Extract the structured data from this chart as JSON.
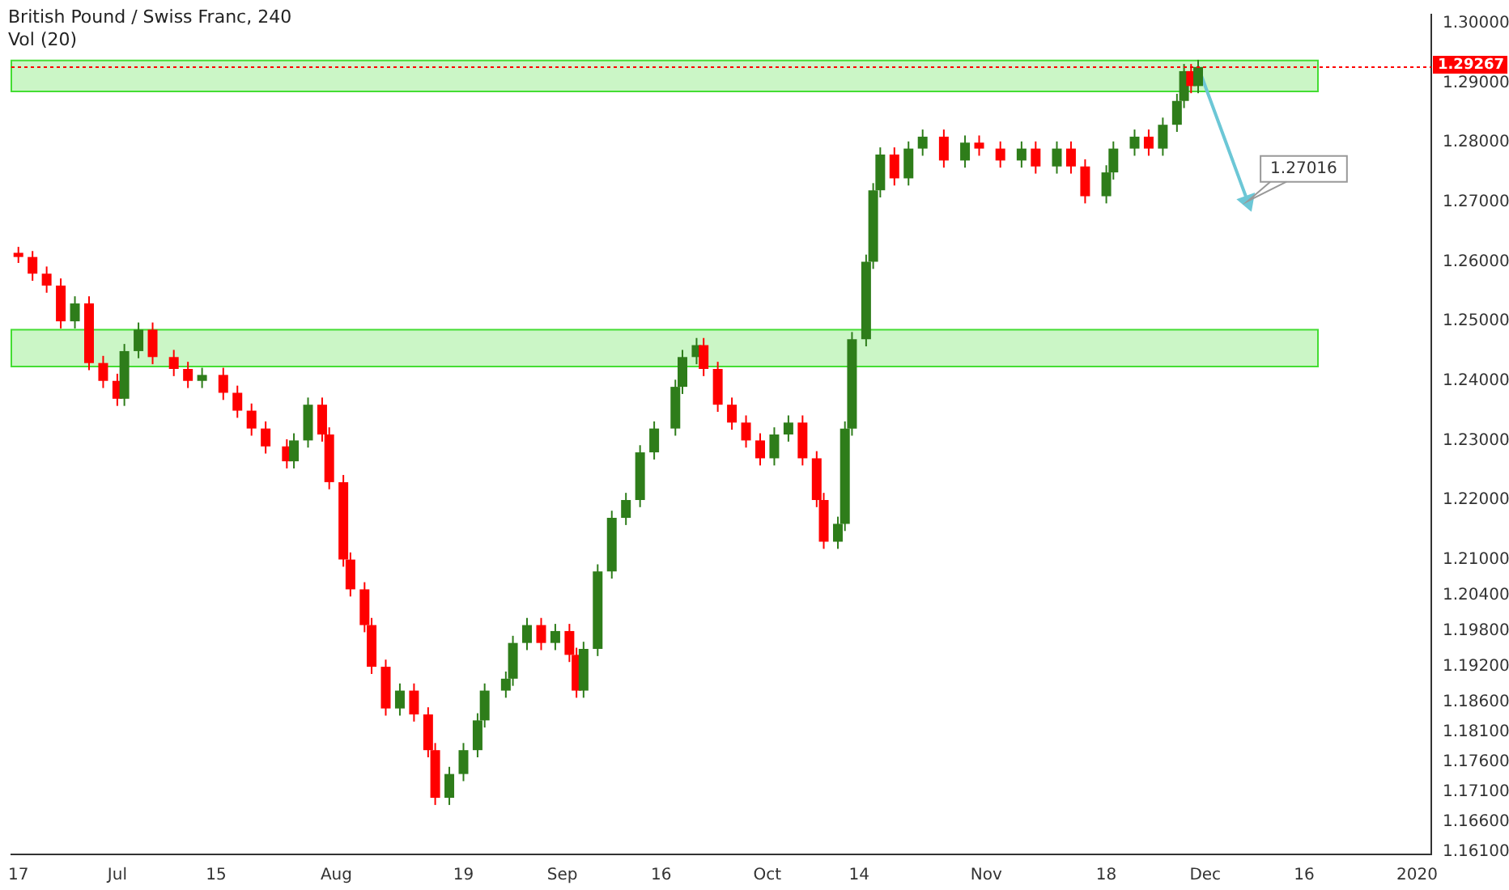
{
  "chart_data": {
    "type": "candlestick",
    "title": "British Pound / Swiss Franc, 240",
    "subtitle": "Vol (20)",
    "x": [
      "2019-06-17",
      "2019-06-19",
      "2019-06-21",
      "2019-06-23",
      "2019-06-25",
      "2019-06-27",
      "2019-06-29",
      "2019-07-01",
      "2019-07-02",
      "2019-07-04",
      "2019-07-06",
      "2019-07-09",
      "2019-07-11",
      "2019-07-13",
      "2019-07-16",
      "2019-07-18",
      "2019-07-20",
      "2019-07-22",
      "2019-07-25",
      "2019-07-26",
      "2019-07-28",
      "2019-07-30",
      "2019-07-31",
      "2019-08-02",
      "2019-08-03",
      "2019-08-05",
      "2019-08-06",
      "2019-08-08",
      "2019-08-10",
      "2019-08-12",
      "2019-08-14",
      "2019-08-15",
      "2019-08-17",
      "2019-08-19",
      "2019-08-21",
      "2019-08-22",
      "2019-08-25",
      "2019-08-26",
      "2019-08-28",
      "2019-08-30",
      "2019-09-01",
      "2019-09-03",
      "2019-09-04",
      "2019-09-05",
      "2019-09-07",
      "2019-09-09",
      "2019-09-11",
      "2019-09-13",
      "2019-09-15",
      "2019-09-18",
      "2019-09-19",
      "2019-09-21",
      "2019-09-22",
      "2019-09-24",
      "2019-09-26",
      "2019-09-28",
      "2019-09-30",
      "2019-10-02",
      "2019-10-04",
      "2019-10-06",
      "2019-10-08",
      "2019-10-09",
      "2019-10-11",
      "2019-10-12",
      "2019-10-13",
      "2019-10-15",
      "2019-10-16",
      "2019-10-17",
      "2019-10-19",
      "2019-10-21",
      "2019-10-23",
      "2019-10-26",
      "2019-10-29",
      "2019-10-31",
      "2019-11-03",
      "2019-11-06",
      "2019-11-08",
      "2019-11-11",
      "2019-11-13",
      "2019-11-15",
      "2019-11-18",
      "2019-11-19",
      "2019-11-22",
      "2019-11-24",
      "2019-11-26",
      "2019-11-28",
      "2019-11-29",
      "2019-11-30",
      "2019-12-01"
    ],
    "ohlc": [
      [
        1.2615,
        1.2625,
        1.2598,
        1.2608
      ],
      [
        1.2608,
        1.2618,
        1.2568,
        1.258
      ],
      [
        1.258,
        1.2592,
        1.2548,
        1.256
      ],
      [
        1.256,
        1.2572,
        1.2488,
        1.25
      ],
      [
        1.25,
        1.2542,
        1.2488,
        1.253
      ],
      [
        1.253,
        1.2542,
        1.2418,
        1.243
      ],
      [
        1.243,
        1.2442,
        1.2388,
        1.24
      ],
      [
        1.24,
        1.2412,
        1.2358,
        1.237
      ],
      [
        1.237,
        1.2462,
        1.2358,
        1.245
      ],
      [
        1.245,
        1.2498,
        1.2438,
        1.2486
      ],
      [
        1.2486,
        1.2498,
        1.2428,
        1.244
      ],
      [
        1.244,
        1.2452,
        1.2408,
        1.242
      ],
      [
        1.242,
        1.2432,
        1.2388,
        1.24
      ],
      [
        1.24,
        1.2422,
        1.2388,
        1.241
      ],
      [
        1.241,
        1.2422,
        1.2368,
        1.238
      ],
      [
        1.238,
        1.2392,
        1.2338,
        1.235
      ],
      [
        1.235,
        1.2362,
        1.2308,
        1.232
      ],
      [
        1.232,
        1.2332,
        1.2278,
        1.229
      ],
      [
        1.229,
        1.2302,
        1.2253,
        1.2265
      ],
      [
        1.2265,
        1.2312,
        1.2253,
        1.23
      ],
      [
        1.23,
        1.2372,
        1.2288,
        1.236
      ],
      [
        1.236,
        1.2372,
        1.2298,
        1.231
      ],
      [
        1.231,
        1.2322,
        1.2218,
        1.223
      ],
      [
        1.223,
        1.2242,
        1.2088,
        1.21
      ],
      [
        1.21,
        1.2112,
        1.2038,
        1.205
      ],
      [
        1.205,
        1.2062,
        1.1978,
        1.199
      ],
      [
        1.199,
        1.2002,
        1.1908,
        1.192
      ],
      [
        1.192,
        1.1932,
        1.1838,
        1.185
      ],
      [
        1.185,
        1.1892,
        1.1838,
        1.188
      ],
      [
        1.188,
        1.1892,
        1.1828,
        1.184
      ],
      [
        1.184,
        1.1852,
        1.1768,
        1.178
      ],
      [
        1.178,
        1.1792,
        1.1688,
        1.17
      ],
      [
        1.17,
        1.1752,
        1.1688,
        1.174
      ],
      [
        1.174,
        1.1792,
        1.1728,
        1.178
      ],
      [
        1.178,
        1.1842,
        1.1768,
        1.183
      ],
      [
        1.183,
        1.1892,
        1.1818,
        1.188
      ],
      [
        1.188,
        1.1912,
        1.1868,
        1.19
      ],
      [
        1.19,
        1.1972,
        1.1888,
        1.196
      ],
      [
        1.196,
        1.2002,
        1.1948,
        1.199
      ],
      [
        1.199,
        1.2002,
        1.1948,
        1.196
      ],
      [
        1.196,
        1.1992,
        1.1948,
        1.198
      ],
      [
        1.198,
        1.1992,
        1.1928,
        1.194
      ],
      [
        1.194,
        1.1952,
        1.1868,
        1.188
      ],
      [
        1.188,
        1.1962,
        1.1868,
        1.195
      ],
      [
        1.195,
        1.2092,
        1.1938,
        1.208
      ],
      [
        1.208,
        1.2182,
        1.2068,
        1.217
      ],
      [
        1.217,
        1.2212,
        1.2158,
        1.22
      ],
      [
        1.22,
        1.2292,
        1.2188,
        1.228
      ],
      [
        1.228,
        1.2332,
        1.2268,
        1.232
      ],
      [
        1.232,
        1.2402,
        1.2308,
        1.239
      ],
      [
        1.239,
        1.2452,
        1.2378,
        1.244
      ],
      [
        1.244,
        1.2472,
        1.2428,
        1.246
      ],
      [
        1.246,
        1.2472,
        1.2408,
        1.242
      ],
      [
        1.242,
        1.2432,
        1.2348,
        1.236
      ],
      [
        1.236,
        1.2372,
        1.2318,
        1.233
      ],
      [
        1.233,
        1.2342,
        1.2288,
        1.23
      ],
      [
        1.23,
        1.2312,
        1.2258,
        1.227
      ],
      [
        1.227,
        1.2322,
        1.2258,
        1.231
      ],
      [
        1.231,
        1.2342,
        1.2298,
        1.233
      ],
      [
        1.233,
        1.2342,
        1.2258,
        1.227
      ],
      [
        1.227,
        1.2282,
        1.2188,
        1.22
      ],
      [
        1.22,
        1.2212,
        1.2118,
        1.213
      ],
      [
        1.213,
        1.2172,
        1.2118,
        1.216
      ],
      [
        1.216,
        1.2332,
        1.2148,
        1.232
      ],
      [
        1.232,
        1.2482,
        1.2308,
        1.247
      ],
      [
        1.247,
        1.2612,
        1.2458,
        1.26
      ],
      [
        1.26,
        1.2732,
        1.2588,
        1.272
      ],
      [
        1.272,
        1.2792,
        1.2708,
        1.278
      ],
      [
        1.278,
        1.2792,
        1.2728,
        1.274
      ],
      [
        1.274,
        1.2802,
        1.2728,
        1.279
      ],
      [
        1.279,
        1.2822,
        1.2778,
        1.281
      ],
      [
        1.281,
        1.2822,
        1.2758,
        1.277
      ],
      [
        1.277,
        1.2812,
        1.2758,
        1.28
      ],
      [
        1.28,
        1.2812,
        1.2778,
        1.279
      ],
      [
        1.279,
        1.2802,
        1.2758,
        1.277
      ],
      [
        1.277,
        1.2802,
        1.2758,
        1.279
      ],
      [
        1.279,
        1.2802,
        1.2748,
        1.276
      ],
      [
        1.276,
        1.2802,
        1.2748,
        1.279
      ],
      [
        1.279,
        1.2802,
        1.2748,
        1.276
      ],
      [
        1.276,
        1.2772,
        1.2698,
        1.271
      ],
      [
        1.271,
        1.2762,
        1.2698,
        1.275
      ],
      [
        1.275,
        1.2802,
        1.2738,
        1.279
      ],
      [
        1.279,
        1.2822,
        1.2778,
        1.281
      ],
      [
        1.281,
        1.2822,
        1.2778,
        1.279
      ],
      [
        1.279,
        1.2842,
        1.2778,
        1.283
      ],
      [
        1.283,
        1.2882,
        1.2818,
        1.287
      ],
      [
        1.287,
        1.2932,
        1.2858,
        1.292
      ],
      [
        1.292,
        1.2932,
        1.2883,
        1.2895
      ],
      [
        1.2895,
        1.2939,
        1.2883,
        1.2927
      ]
    ],
    "colors": [
      "#ff0000",
      "#ff0000",
      "#ff0000",
      "#ff0000",
      "#2e7d1a",
      "#ff0000",
      "#ff0000",
      "#ff0000",
      "#2e7d1a",
      "#2e7d1a",
      "#ff0000",
      "#ff0000",
      "#ff0000",
      "#2e7d1a",
      "#ff0000",
      "#ff0000",
      "#ff0000",
      "#ff0000",
      "#ff0000",
      "#2e7d1a",
      "#2e7d1a",
      "#ff0000",
      "#ff0000",
      "#ff0000",
      "#ff0000",
      "#ff0000",
      "#ff0000",
      "#ff0000",
      "#2e7d1a",
      "#ff0000",
      "#ff0000",
      "#ff0000",
      "#2e7d1a",
      "#2e7d1a",
      "#2e7d1a",
      "#2e7d1a",
      "#2e7d1a",
      "#2e7d1a",
      "#2e7d1a",
      "#ff0000",
      "#2e7d1a",
      "#ff0000",
      "#ff0000",
      "#2e7d1a",
      "#2e7d1a",
      "#2e7d1a",
      "#2e7d1a",
      "#2e7d1a",
      "#2e7d1a",
      "#2e7d1a",
      "#2e7d1a",
      "#2e7d1a",
      "#ff0000",
      "#ff0000",
      "#ff0000",
      "#ff0000",
      "#ff0000",
      "#2e7d1a",
      "#2e7d1a",
      "#ff0000",
      "#ff0000",
      "#ff0000",
      "#2e7d1a",
      "#2e7d1a",
      "#2e7d1a",
      "#2e7d1a",
      "#2e7d1a",
      "#2e7d1a",
      "#ff0000",
      "#2e7d1a",
      "#2e7d1a",
      "#ff0000",
      "#2e7d1a",
      "#ff0000",
      "#ff0000",
      "#2e7d1a",
      "#ff0000",
      "#2e7d1a",
      "#ff0000",
      "#ff0000",
      "#2e7d1a",
      "#2e7d1a",
      "#2e7d1a",
      "#ff0000",
      "#2e7d1a",
      "#2e7d1a",
      "#2e7d1a",
      "#ff0000",
      "#2e7d1a"
    ],
    "xlim": [
      "2019-06-16",
      "2020-01-03"
    ],
    "xticks": [
      {
        "value": "2019-06-17",
        "label": "17"
      },
      {
        "value": "2019-07-01",
        "label": "Jul"
      },
      {
        "value": "2019-07-15",
        "label": "15"
      },
      {
        "value": "2019-08-01",
        "label": "Aug"
      },
      {
        "value": "2019-08-19",
        "label": "19"
      },
      {
        "value": "2019-09-02",
        "label": "Sep"
      },
      {
        "value": "2019-09-16",
        "label": "16"
      },
      {
        "value": "2019-10-01",
        "label": "Oct"
      },
      {
        "value": "2019-10-14",
        "label": "14"
      },
      {
        "value": "2019-11-01",
        "label": "Nov"
      },
      {
        "value": "2019-11-18",
        "label": "18"
      },
      {
        "value": "2019-12-02",
        "label": "Dec"
      },
      {
        "value": "2019-12-16",
        "label": "16"
      },
      {
        "value": "2020-01-01",
        "label": "2020"
      }
    ],
    "ylim": [
      1.1605,
      1.3015
    ],
    "yticks": [
      {
        "value": 1.3,
        "label": "1.30000"
      },
      {
        "value": 1.29,
        "label": "1.29000"
      },
      {
        "value": 1.28,
        "label": "1.28000"
      },
      {
        "value": 1.27,
        "label": "1.27000"
      },
      {
        "value": 1.26,
        "label": "1.26000"
      },
      {
        "value": 1.25,
        "label": "1.25000"
      },
      {
        "value": 1.24,
        "label": "1.24000"
      },
      {
        "value": 1.23,
        "label": "1.23000"
      },
      {
        "value": 1.22,
        "label": "1.22000"
      },
      {
        "value": 1.21,
        "label": "1.21000"
      },
      {
        "value": 1.204,
        "label": "1.20400"
      },
      {
        "value": 1.198,
        "label": "1.19800"
      },
      {
        "value": 1.192,
        "label": "1.19200"
      },
      {
        "value": 1.186,
        "label": "1.18600"
      },
      {
        "value": 1.181,
        "label": "1.18100"
      },
      {
        "value": 1.176,
        "label": "1.17600"
      },
      {
        "value": 1.171,
        "label": "1.17100"
      },
      {
        "value": 1.166,
        "label": "1.16600"
      },
      {
        "value": 1.161,
        "label": "1.16100"
      }
    ],
    "bands": [
      {
        "axis": "y",
        "from": 1.2886,
        "to": 1.2938,
        "color": "#44dd33"
      },
      {
        "axis": "y",
        "from": 1.2424,
        "to": 1.2486,
        "color": "#44dd33"
      }
    ],
    "ref_lines": [
      {
        "axis": "y",
        "value": 1.29267,
        "label": "1.29267",
        "color": "#ff0000",
        "line_style": "dotted"
      }
    ],
    "series": [
      {
        "type": "line",
        "x": [
          "2019-12-01",
          "2019-12-08"
        ],
        "values": [
          1.2927,
          1.27016
        ],
        "color": "#6cc7d6"
      }
    ],
    "annotations": [
      {
        "text": "1.27016",
        "x": "2019-12-08",
        "y": 1.27016
      }
    ],
    "grid": false,
    "legend": false
  }
}
